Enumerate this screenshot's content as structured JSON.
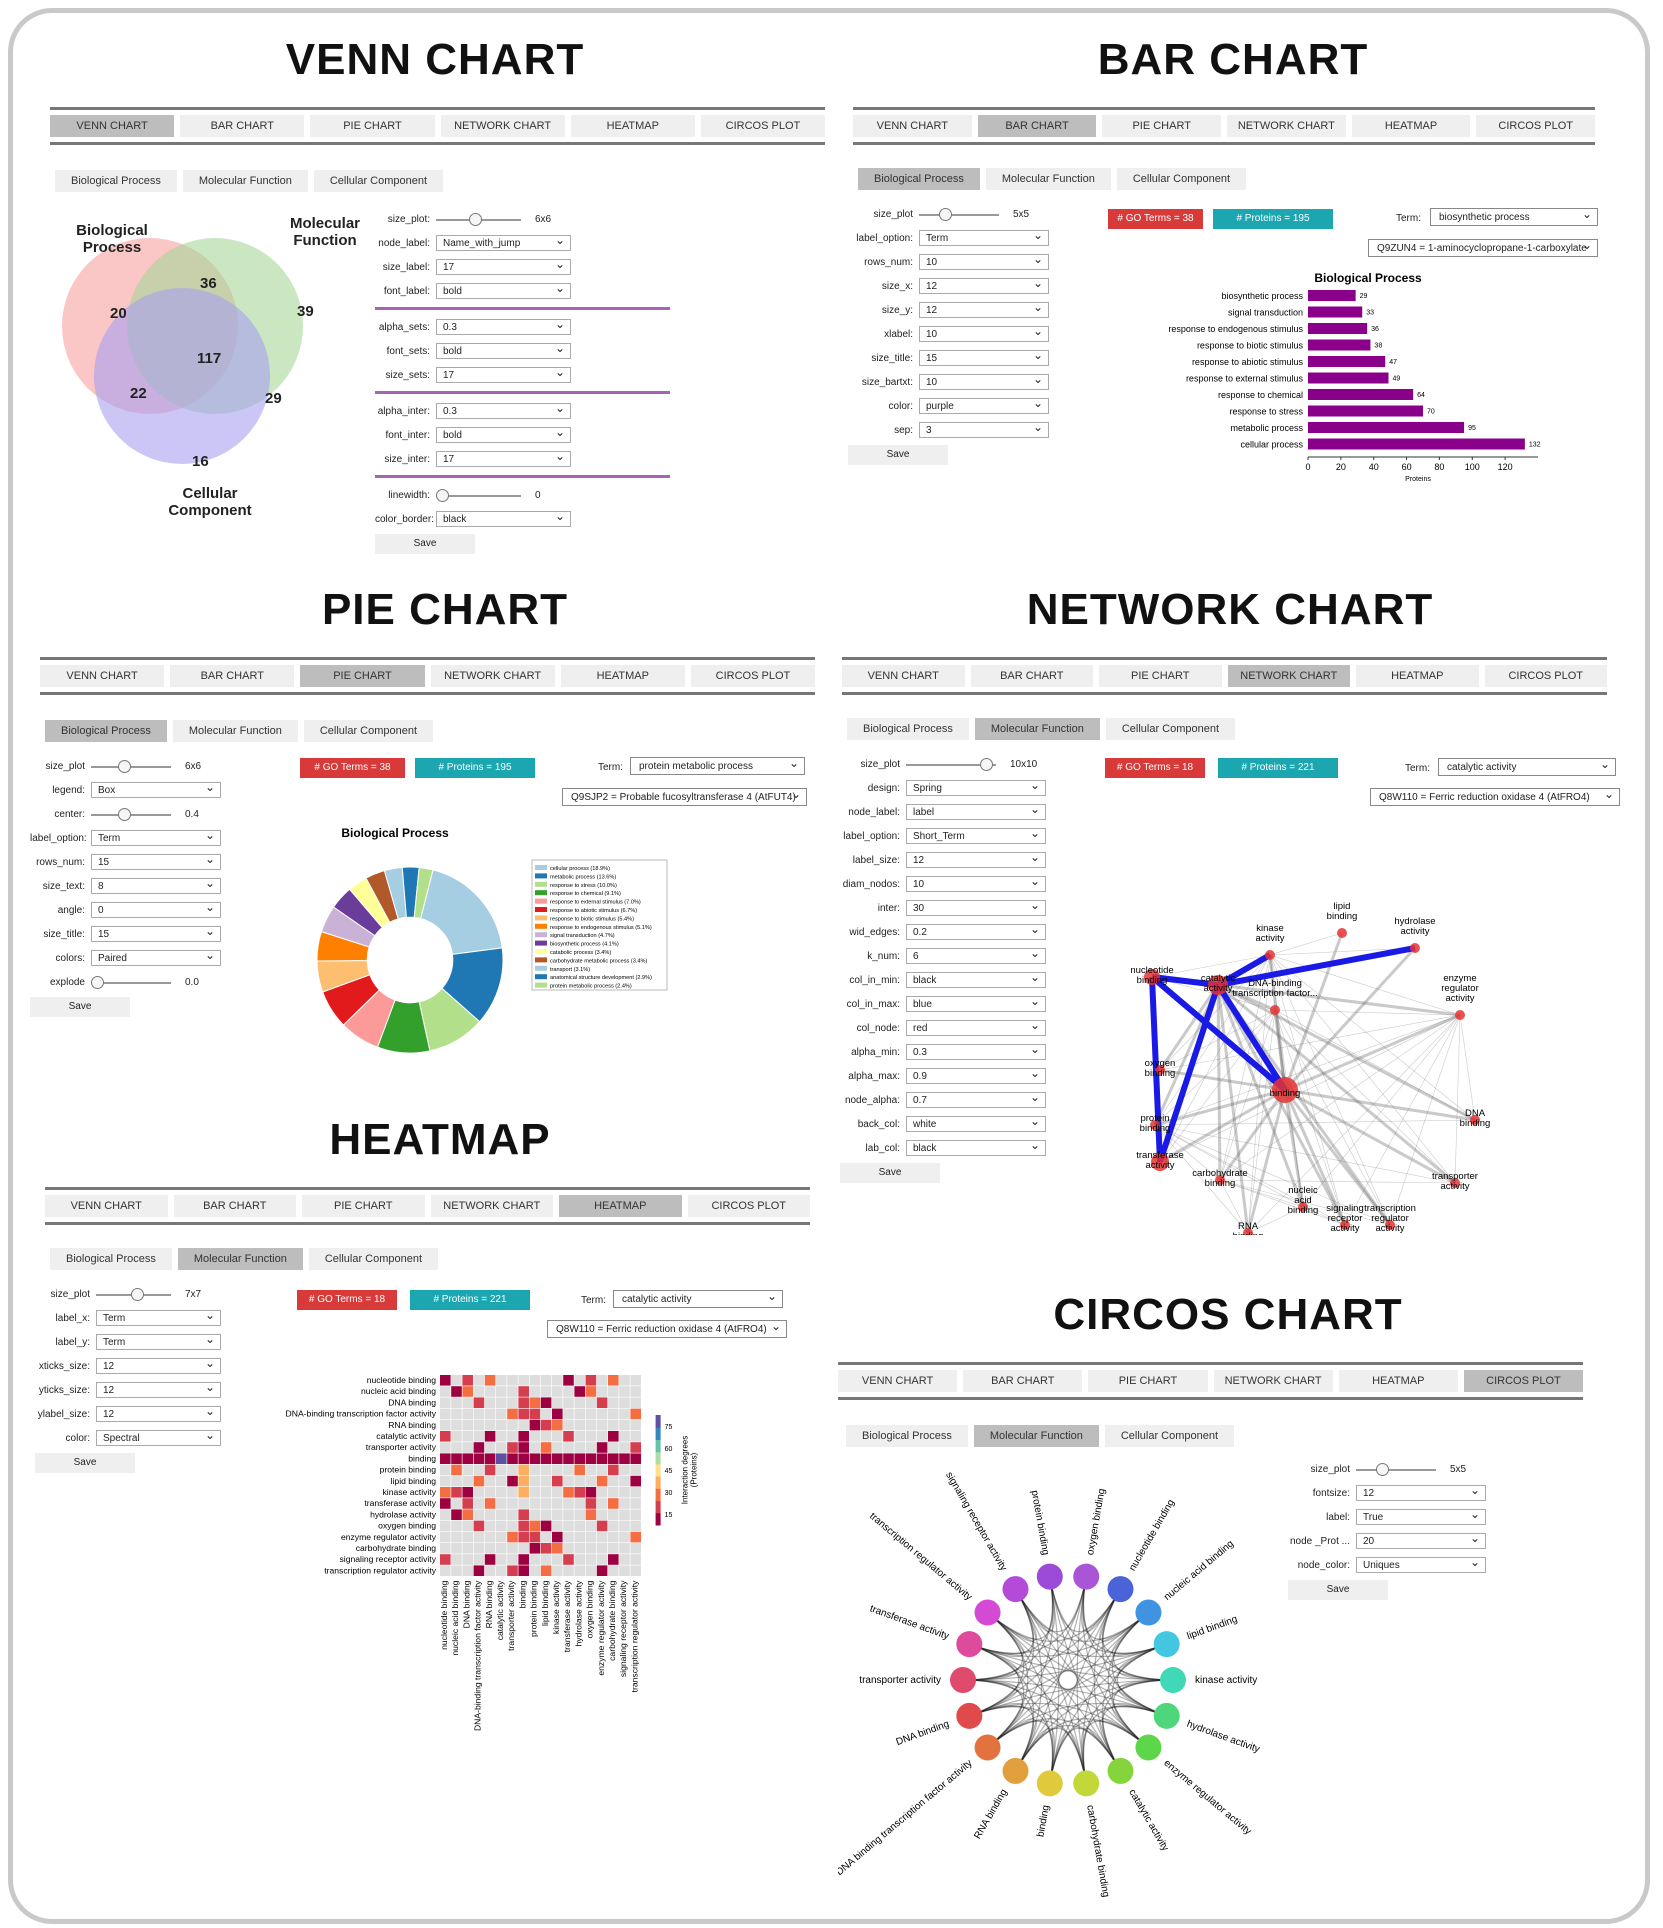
{
  "tabs": [
    "VENN CHART",
    "BAR CHART",
    "PIE CHART",
    "NETWORK CHART",
    "HEATMAP",
    "CIRCOS PLOT"
  ],
  "subtabs": [
    "Biological Process",
    "Molecular Function",
    "Cellular Component"
  ],
  "save_label": "Save",
  "venn": {
    "title": "VENN CHART",
    "labels": {
      "bp": "Biological\nProcess",
      "mf": "Molecular\nFunction",
      "cc": "Cellular\nComponent"
    },
    "regions": {
      "bp_only": "20",
      "mf_only": "39",
      "cc_only": "16",
      "bp_mf": "36",
      "bp_cc": "22",
      "mf_cc": "29",
      "all": "117"
    },
    "colors": {
      "bp": "#f8a0a0",
      "mf": "#a6d79a",
      "cc": "#a9a0f0"
    },
    "controls": [
      {
        "label": "size_plot:",
        "type": "slider",
        "value": "6x6",
        "pos": 0.45
      },
      {
        "label": "node_label:",
        "type": "select",
        "value": "Name_with_jump"
      },
      {
        "label": "size_label:",
        "type": "select",
        "value": "17"
      },
      {
        "label": "font_label:",
        "type": "select",
        "value": "bold"
      },
      {
        "type": "sep"
      },
      {
        "label": "alpha_sets:",
        "type": "select",
        "value": "0.3"
      },
      {
        "label": "font_sets:",
        "type": "select",
        "value": "bold"
      },
      {
        "label": "size_sets:",
        "type": "select",
        "value": "17"
      },
      {
        "type": "sep"
      },
      {
        "label": "alpha_inter:",
        "type": "select",
        "value": "0.3"
      },
      {
        "label": "font_inter:",
        "type": "select",
        "value": "bold"
      },
      {
        "label": "size_inter:",
        "type": "select",
        "value": "17"
      },
      {
        "type": "sep"
      },
      {
        "label": "linewidth:",
        "type": "slider",
        "value": "0",
        "pos": 0.0
      },
      {
        "label": "color_border:",
        "type": "select",
        "value": "black"
      }
    ]
  },
  "bar": {
    "title": "BAR CHART",
    "go_terms": "# GO Terms = 38",
    "proteins": "# Proteins = 195",
    "term_label": "Term:",
    "term_value": "biosynthetic process",
    "protein_value": "Q9ZUN4 = 1-aminocyclopropane-1-carboxylate",
    "controls": [
      {
        "label": "size_plot",
        "type": "slider",
        "value": "5x5",
        "pos": 0.3
      },
      {
        "label": "label_option:",
        "type": "select",
        "value": "Term"
      },
      {
        "label": "rows_num:",
        "type": "select",
        "value": "10"
      },
      {
        "label": "size_x:",
        "type": "select",
        "value": "12"
      },
      {
        "label": "size_y:",
        "type": "select",
        "value": "12"
      },
      {
        "label": "xlabel:",
        "type": "select",
        "value": "10"
      },
      {
        "label": "size_title:",
        "type": "select",
        "value": "15"
      },
      {
        "label": "size_bartxt:",
        "type": "select",
        "value": "10"
      },
      {
        "label": "color:",
        "type": "select",
        "value": "purple"
      },
      {
        "label": "sep:",
        "type": "select",
        "value": "3"
      }
    ],
    "chart_data": {
      "type": "bar",
      "orientation": "horizontal",
      "title": "Biological Process",
      "xlabel": "Proteins",
      "categories": [
        "biosynthetic process",
        "signal transduction",
        "response to endogenous stimulus",
        "response to biotic stimulus",
        "response to abiotic stimulus",
        "response to external stimulus",
        "response to chemical",
        "response to stress",
        "metabolic process",
        "cellular process"
      ],
      "values": [
        29,
        33,
        36,
        38,
        47,
        49,
        64,
        70,
        95,
        132
      ],
      "xlim": [
        0,
        140
      ],
      "xticks": [
        0,
        20,
        40,
        60,
        80,
        100,
        120
      ],
      "color": "#8b008b"
    }
  },
  "pie": {
    "title": "PIE CHART",
    "go_terms": "# GO Terms = 38",
    "proteins": "# Proteins = 195",
    "term_label": "Term:",
    "term_value": "protein metabolic process",
    "protein_value": "Q9SJP2 = Probable fucosyltransferase 4 (AtFUT4)",
    "controls": [
      {
        "label": "size_plot",
        "type": "slider",
        "value": "6x6",
        "pos": 0.4
      },
      {
        "label": "legend:",
        "type": "select",
        "value": "Box"
      },
      {
        "label": "center:",
        "type": "slider",
        "value": "0.4",
        "pos": 0.4
      },
      {
        "label": "label_option:",
        "type": "select",
        "value": "Term"
      },
      {
        "label": "rows_num:",
        "type": "select",
        "value": "15"
      },
      {
        "label": "size_text:",
        "type": "select",
        "value": "8"
      },
      {
        "label": "angle:",
        "type": "select",
        "value": "0"
      },
      {
        "label": "size_title:",
        "type": "select",
        "value": "15"
      },
      {
        "label": "colors:",
        "type": "select",
        "value": "Paired"
      },
      {
        "label": "explode",
        "type": "slider",
        "value": "0.0",
        "pos": 0.0
      }
    ],
    "chart_data": {
      "type": "pie",
      "title": "Biological Process",
      "hole": 0.4,
      "slices": [
        {
          "label": "cellular process (18.9%)",
          "value": 18.9,
          "color": "#a6cee3"
        },
        {
          "label": "metabolic process (13.6%)",
          "value": 13.6,
          "color": "#1f78b4"
        },
        {
          "label": "response to stress (10.0%)",
          "value": 10.0,
          "color": "#b2df8a"
        },
        {
          "label": "response to chemical (9.1%)",
          "value": 9.1,
          "color": "#33a02c"
        },
        {
          "label": "response to external stimulus (7.0%)",
          "value": 7.0,
          "color": "#fb9a99"
        },
        {
          "label": "response to abiotic stimulus (6.7%)",
          "value": 6.7,
          "color": "#e31a1c"
        },
        {
          "label": "response to biotic stimulus (5.4%)",
          "value": 5.4,
          "color": "#fdbf6f"
        },
        {
          "label": "response to endogenous stimulus (5.1%)",
          "value": 5.1,
          "color": "#ff7f00"
        },
        {
          "label": "signal transduction (4.7%)",
          "value": 4.7,
          "color": "#cab2d6"
        },
        {
          "label": "biosynthetic process (4.1%)",
          "value": 4.1,
          "color": "#6a3d9a"
        },
        {
          "label": "catabolic process (3.4%)",
          "value": 3.4,
          "color": "#ffff99"
        },
        {
          "label": "carbohydrate metabolic process (3.4%)",
          "value": 3.4,
          "color": "#b15928"
        },
        {
          "label": "transport (3.1%)",
          "value": 3.1,
          "color": "#a6cee3"
        },
        {
          "label": "anatomical structure development (2.9%)",
          "value": 2.9,
          "color": "#1f78b4"
        },
        {
          "label": "protein metabolic process (2.4%)",
          "value": 2.4,
          "color": "#b2df8a"
        }
      ]
    }
  },
  "network": {
    "title": "NETWORK CHART",
    "go_terms": "# GO Terms = 18",
    "proteins": "# Proteins = 221",
    "term_label": "Term:",
    "term_value": "catalytic activity",
    "protein_value": "Q8W110 = Ferric reduction oxidase 4 (AtFRO4)",
    "controls": [
      {
        "label": "size_plot",
        "type": "slider",
        "value": "10x10",
        "pos": 0.95
      },
      {
        "label": "design:",
        "type": "select",
        "value": "Spring"
      },
      {
        "label": "node_label:",
        "type": "select",
        "value": "label"
      },
      {
        "label": "label_option:",
        "type": "select",
        "value": "Short_Term"
      },
      {
        "label": "label_size:",
        "type": "select",
        "value": "12"
      },
      {
        "label": "diam_nodos:",
        "type": "select",
        "value": "10"
      },
      {
        "label": "inter:",
        "type": "select",
        "value": "30"
      },
      {
        "label": "wid_edges:",
        "type": "select",
        "value": "0.2"
      },
      {
        "label": "k_num:",
        "type": "select",
        "value": "6"
      },
      {
        "label": "col_in_min:",
        "type": "select",
        "value": "black"
      },
      {
        "label": "col_in_max:",
        "type": "select",
        "value": "blue"
      },
      {
        "label": "col_node:",
        "type": "select",
        "value": "red"
      },
      {
        "label": "alpha_min:",
        "type": "select",
        "value": "0.3"
      },
      {
        "label": "alpha_max:",
        "type": "select",
        "value": "0.9"
      },
      {
        "label": "node_alpha:",
        "type": "select",
        "value": "0.7"
      },
      {
        "label": "back_col:",
        "type": "select",
        "value": "white"
      },
      {
        "label": "lab_col:",
        "type": "select",
        "value": "black"
      }
    ],
    "nodes": [
      {
        "id": "kinase",
        "label": "kinase\nactivity"
      },
      {
        "id": "lipid",
        "label": "lipid\nbinding"
      },
      {
        "id": "hydrolase",
        "label": "hydrolase\nactivity"
      },
      {
        "id": "dnatf",
        "label": "DNA-binding\ntranscription factor..."
      },
      {
        "id": "nucleotide",
        "label": "nucleotide\nbinding"
      },
      {
        "id": "catalytic",
        "label": "catalytic\nactivity"
      },
      {
        "id": "enzyme",
        "label": "enzyme\nregulator\nactivity"
      },
      {
        "id": "oxygen",
        "label": "oxygen\nbinding"
      },
      {
        "id": "binding",
        "label": "binding"
      },
      {
        "id": "protein",
        "label": "protein\nbinding"
      },
      {
        "id": "dna",
        "label": "DNA\nbinding"
      },
      {
        "id": "transferase",
        "label": "transferase\nactivity"
      },
      {
        "id": "carbo",
        "label": "carbohydrate\nbinding"
      },
      {
        "id": "transporter",
        "label": "transporter\nactivity"
      },
      {
        "id": "treg",
        "label": "transcription\nregulator\nactivity"
      },
      {
        "id": "nucleic",
        "label": "nucleic\nacid\nbinding"
      },
      {
        "id": "rna",
        "label": "RNA\nbinding"
      },
      {
        "id": "signal",
        "label": "signaling\nreceptor\nactivity"
      }
    ]
  },
  "heatmap": {
    "title": "HEATMAP",
    "go_terms": "# GO Terms = 18",
    "proteins": "# Proteins = 221",
    "term_label": "Term:",
    "term_value": "catalytic activity",
    "protein_value": "Q8W110 = Ferric reduction oxidase 4 (AtFRO4)",
    "controls": [
      {
        "label": "size_plot",
        "type": "slider",
        "value": "7x7",
        "pos": 0.55
      },
      {
        "label": "label_x:",
        "type": "select",
        "value": "Term"
      },
      {
        "label": "label_y:",
        "type": "select",
        "value": "Term"
      },
      {
        "label": "xticks_size:",
        "type": "select",
        "value": "12"
      },
      {
        "label": "yticks_size:",
        "type": "select",
        "value": "12"
      },
      {
        "label": "ylabel_size:",
        "type": "select",
        "value": "12"
      },
      {
        "label": "color:",
        "type": "select",
        "value": "Spectral"
      }
    ],
    "chart_data": {
      "type": "heatmap",
      "rows": [
        "nucleotide binding",
        "nucleic acid binding",
        "DNA binding",
        "DNA-binding transcription factor activity",
        "RNA binding",
        "catalytic activity",
        "transporter activity",
        "binding",
        "protein binding",
        "lipid binding",
        "kinase activity",
        "transferase activity",
        "hydrolase activity",
        "oxygen binding",
        "enzyme regulator activity",
        "carbohydrate binding",
        "signaling receptor activity",
        "transcription regulator activity"
      ],
      "columns": [
        "nucleotide binding",
        "nucleic acid binding",
        "DNA binding",
        "DNA-binding transcription factor activity",
        "RNA binding",
        "catalytic activity",
        "transporter activity",
        "binding",
        "protein binding",
        "lipid binding",
        "kinase activity",
        "transferase activity",
        "hydrolase activity",
        "oxygen binding",
        "enzyme regulator activity",
        "carbohydrate binding",
        "signaling receptor activity",
        "transcription regulator activity"
      ],
      "colorbar_label": "Interaction degrees\n(Proteins)",
      "colorbar_ticks": [
        15,
        30,
        45,
        60,
        75
      ],
      "colormap": "Spectral"
    }
  },
  "circos": {
    "title": "CIRCOS CHART",
    "controls": [
      {
        "label": "size_plot",
        "type": "slider",
        "value": "5x5",
        "pos": 0.3
      },
      {
        "label": "fontsize:",
        "type": "select",
        "value": "12"
      },
      {
        "label": "label:",
        "type": "select",
        "value": "True"
      },
      {
        "label": "node _Prot ...",
        "type": "select",
        "value": "20"
      },
      {
        "label": "node_color:",
        "type": "select",
        "value": "Uniques"
      }
    ],
    "labels": [
      "oxygen binding",
      "nucleotide binding",
      "nucleic acid binding",
      "lipid binding",
      "kinase activity",
      "hydrolase activity",
      "enzyme regulator activity",
      "catalytic activity",
      "carbohydrate binding",
      "binding",
      "RNA binding",
      "DNA binding transcription factor activity",
      "DNA binding",
      "transporter activity",
      "transferase activity",
      "transcription regulator activity",
      "signaling receptor activity",
      "protein binding"
    ],
    "colors": [
      "#a855d6",
      "#4a63d8",
      "#3e94e0",
      "#43c6e0",
      "#41d8b8",
      "#4dd67a",
      "#5ed64a",
      "#86d43c",
      "#c2d83a",
      "#e0c93a",
      "#e29f3e",
      "#e2733e",
      "#e14a4a",
      "#e04a6c",
      "#de4a9c",
      "#d54ad4",
      "#b44ad8",
      "#9c4ad8"
    ]
  }
}
